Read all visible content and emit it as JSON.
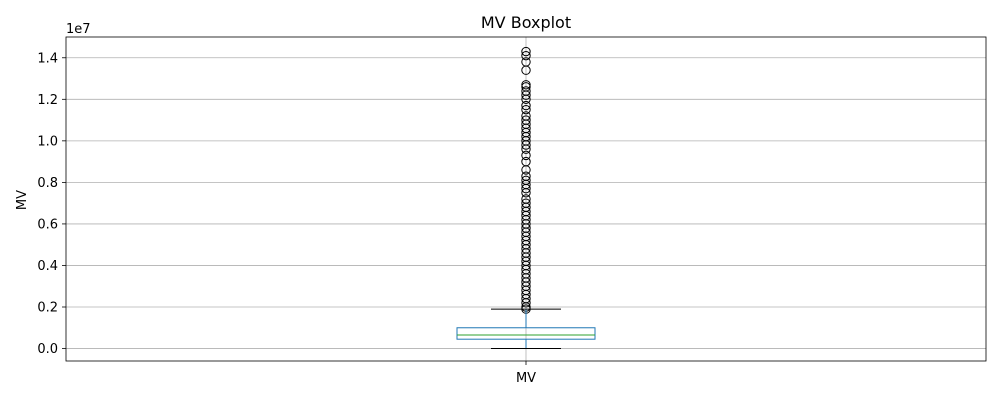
{
  "chart_data": {
    "type": "box",
    "title": "MV Boxplot",
    "xlabel": "",
    "ylabel": "MV",
    "offset_label": "1e7",
    "categories": [
      "MV"
    ],
    "y_scale_multiplier": 10000000,
    "ylim": [
      -0.06,
      1.5
    ],
    "yticks": [
      0.0,
      0.2,
      0.4,
      0.6,
      0.8,
      1.0,
      1.2,
      1.4
    ],
    "ytick_labels": [
      "0.0",
      "0.2",
      "0.4",
      "0.6",
      "0.8",
      "1.0",
      "1.2",
      "1.4"
    ],
    "grid": true,
    "box": {
      "whisker_low": 0.0,
      "q1": 0.045,
      "median": 0.065,
      "q3": 0.1,
      "whisker_high": 0.19
    },
    "outliers": [
      0.19,
      0.2,
      0.22,
      0.24,
      0.26,
      0.28,
      0.3,
      0.32,
      0.34,
      0.36,
      0.38,
      0.4,
      0.42,
      0.44,
      0.46,
      0.48,
      0.5,
      0.52,
      0.54,
      0.56,
      0.58,
      0.6,
      0.62,
      0.64,
      0.66,
      0.68,
      0.7,
      0.72,
      0.75,
      0.77,
      0.79,
      0.81,
      0.83,
      0.86,
      0.9,
      0.93,
      0.96,
      0.98,
      1.0,
      1.02,
      1.04,
      1.06,
      1.08,
      1.1,
      1.12,
      1.15,
      1.17,
      1.2,
      1.22,
      1.24,
      1.26,
      1.27,
      1.34,
      1.38,
      1.41,
      1.43
    ],
    "colors": {
      "box": "#1f77b4",
      "median": "#2ca02c",
      "whisker": "#1f77b4",
      "cap": "#000000",
      "outlier": "#000000",
      "grid": "#b0b0b0"
    }
  }
}
